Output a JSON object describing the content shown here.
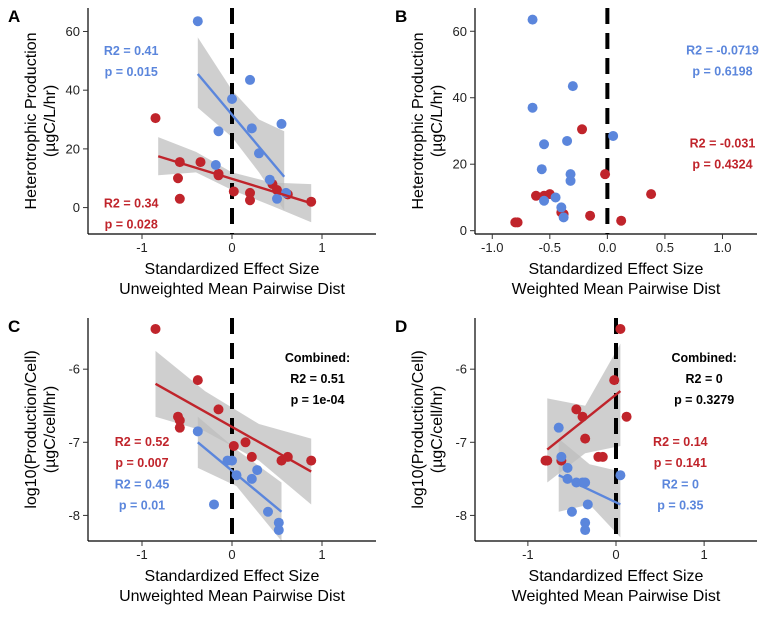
{
  "chart_data": [
    {
      "type": "scatter",
      "panel_label": "A",
      "xlabel": [
        "Standardized Effect Size",
        "Unweighted Mean Pairwise Dist"
      ],
      "ylabel": [
        "Heterotrophic Production",
        "(µgC/L/hr)"
      ],
      "xlim": [
        -1.6,
        1.6
      ],
      "ylim": [
        -9,
        68
      ],
      "xticks": [
        -1,
        0,
        1
      ],
      "yticks": [
        0,
        20,
        40,
        60
      ],
      "vline_x": 0,
      "series": [
        {
          "color": "#c0242b",
          "points": [
            [
              -0.85,
              30.5
            ],
            [
              -0.58,
              15.5
            ],
            [
              -0.6,
              10
            ],
            [
              -0.58,
              3
            ],
            [
              -0.35,
              15.5
            ],
            [
              -0.15,
              11
            ],
            [
              -0.15,
              11.5
            ],
            [
              0.02,
              5.5
            ],
            [
              0.2,
              5
            ],
            [
              0.2,
              2.5
            ],
            [
              0.45,
              8
            ],
            [
              0.5,
              6
            ],
            [
              0.62,
              4.5
            ],
            [
              0.88,
              2
            ]
          ],
          "fit": [
            [
              -0.82,
              17.5
            ],
            [
              0.88,
              1.5
            ]
          ],
          "band_lower": [
            [
              -0.82,
              11
            ],
            [
              -0.4,
              12
            ],
            [
              0,
              6
            ],
            [
              0.45,
              0.5
            ],
            [
              0.88,
              -5
            ]
          ],
          "band_upper": [
            [
              -0.82,
              24
            ],
            [
              -0.4,
              19
            ],
            [
              0,
              12
            ],
            [
              0.45,
              8.5
            ],
            [
              0.88,
              8
            ]
          ]
        },
        {
          "color": "#5b86dc",
          "points": [
            [
              -0.38,
              63.5
            ],
            [
              -0.15,
              26
            ],
            [
              -0.18,
              14.5
            ],
            [
              0,
              37
            ],
            [
              0.2,
              43.5
            ],
            [
              0.22,
              27
            ],
            [
              0.3,
              18.5
            ],
            [
              0.42,
              9.5
            ],
            [
              0.5,
              3
            ],
            [
              0.55,
              28.5
            ],
            [
              0.6,
              5
            ]
          ],
          "fit": [
            [
              -0.38,
              45.5
            ],
            [
              0.58,
              10.5
            ]
          ],
          "band_lower": [
            [
              -0.38,
              34
            ],
            [
              0,
              24
            ],
            [
              0.3,
              12
            ],
            [
              0.58,
              -1
            ]
          ],
          "band_upper": [
            [
              -0.38,
              58
            ],
            [
              0,
              40
            ],
            [
              0.3,
              30
            ],
            [
              0.58,
              26
            ]
          ]
        }
      ],
      "annotations": [
        {
          "lines": [
            "R2 = 0.41",
            "p = 0.015"
          ],
          "color": "#5b86dc",
          "x": -1.12,
          "y": 52
        },
        {
          "lines": [
            "R2 = 0.34",
            "p = 0.028"
          ],
          "color": "#c0242b",
          "x": -1.12,
          "y": 0
        }
      ]
    },
    {
      "type": "scatter",
      "panel_label": "B",
      "xlabel": [
        "Standardized Effect Size",
        "Weighted Mean Pairwise Dist"
      ],
      "ylabel": [
        "Heterotrophic Production",
        "(µgC/L/hr)"
      ],
      "xlim": [
        -1.15,
        1.3
      ],
      "ylim": [
        -1,
        67
      ],
      "xticks": [
        -1,
        -0.5,
        0,
        0.5,
        1
      ],
      "xticklabels": [
        "-1.0",
        "-0.5",
        "0.0",
        "0.5",
        "1.0"
      ],
      "yticks": [
        0,
        20,
        40,
        60
      ],
      "vline_x": 0,
      "series": [
        {
          "color": "#c0242b",
          "points": [
            [
              -0.8,
              2.5
            ],
            [
              -0.78,
              2.5
            ],
            [
              -0.62,
              10.5
            ],
            [
              -0.55,
              10.5
            ],
            [
              -0.5,
              11
            ],
            [
              -0.4,
              5.5
            ],
            [
              -0.38,
              5
            ],
            [
              -0.22,
              30.5
            ],
            [
              -0.15,
              4.5
            ],
            [
              -0.02,
              17
            ],
            [
              0.12,
              3
            ],
            [
              0.38,
              11
            ]
          ],
          "fit": [],
          "band_lower": [],
          "band_upper": []
        },
        {
          "color": "#5b86dc",
          "points": [
            [
              -0.65,
              63.5
            ],
            [
              -0.65,
              37
            ],
            [
              -0.55,
              26
            ],
            [
              -0.57,
              18.5
            ],
            [
              -0.55,
              9
            ],
            [
              -0.45,
              10
            ],
            [
              -0.4,
              7
            ],
            [
              -0.38,
              4
            ],
            [
              -0.35,
              27
            ],
            [
              -0.32,
              15
            ],
            [
              -0.32,
              17
            ],
            [
              -0.3,
              43.5
            ],
            [
              0.05,
              28.5
            ]
          ],
          "fit": [],
          "band_lower": [],
          "band_upper": []
        }
      ],
      "annotations": [
        {
          "lines": [
            "R2 = -0.0719",
            "p = 0.6198"
          ],
          "color": "#5b86dc",
          "x": 1.0,
          "y": 53
        },
        {
          "lines": [
            "R2 = -0.031",
            "p = 0.4324"
          ],
          "color": "#c0242b",
          "x": 1.0,
          "y": 25
        }
      ]
    },
    {
      "type": "scatter",
      "panel_label": "C",
      "xlabel": [
        "Standardized Effect Size",
        "Unweighted Mean Pairwise Dist"
      ],
      "ylabel": [
        "log10(Production/Cell)",
        "(µgC/cell/hr)"
      ],
      "xlim": [
        -1.6,
        1.6
      ],
      "ylim": [
        -8.35,
        -5.3
      ],
      "xticks": [
        -1,
        0,
        1
      ],
      "yticks": [
        -8,
        -7,
        -6
      ],
      "vline_x": 0,
      "series": [
        {
          "color": "#c0242b",
          "points": [
            [
              -0.85,
              -5.45
            ],
            [
              -0.6,
              -6.65
            ],
            [
              -0.58,
              -6.7
            ],
            [
              -0.58,
              -6.8
            ],
            [
              -0.38,
              -6.15
            ],
            [
              -0.15,
              -6.55
            ],
            [
              0.02,
              -7.05
            ],
            [
              0.15,
              -7.0
            ],
            [
              0.22,
              -7.2
            ],
            [
              0.55,
              -7.25
            ],
            [
              0.62,
              -7.2
            ],
            [
              0.88,
              -7.25
            ]
          ],
          "fit": [
            [
              -0.85,
              -6.2
            ],
            [
              0.88,
              -7.4
            ]
          ],
          "band_lower": [
            [
              -0.85,
              -6.65
            ],
            [
              -0.3,
              -6.85
            ],
            [
              0.3,
              -7.25
            ],
            [
              0.88,
              -7.85
            ]
          ],
          "band_upper": [
            [
              -0.85,
              -5.75
            ],
            [
              -0.3,
              -6.3
            ],
            [
              0.3,
              -6.75
            ],
            [
              0.88,
              -6.95
            ]
          ]
        },
        {
          "color": "#5b86dc",
          "points": [
            [
              -0.38,
              -6.85
            ],
            [
              -0.2,
              -7.85
            ],
            [
              -0.05,
              -7.25
            ],
            [
              0,
              -7.25
            ],
            [
              0.05,
              -7.45
            ],
            [
              0.22,
              -7.5
            ],
            [
              0.28,
              -7.38
            ],
            [
              0.4,
              -7.95
            ],
            [
              0.52,
              -8.1
            ],
            [
              0.52,
              -8.2
            ]
          ],
          "fit": [
            [
              -0.38,
              -7.0
            ],
            [
              0.55,
              -7.95
            ]
          ],
          "band_lower": [
            [
              -0.38,
              -7.35
            ],
            [
              0.05,
              -7.6
            ],
            [
              0.55,
              -8.35
            ]
          ],
          "band_upper": [
            [
              -0.38,
              -6.65
            ],
            [
              0.05,
              -7.1
            ],
            [
              0.55,
              -7.55
            ]
          ]
        }
      ],
      "annotations": [
        {
          "lines": [
            "Combined:",
            "R2 = 0.51",
            "p = 1e-04"
          ],
          "color": "#000000",
          "x": 0.95,
          "y": -5.9
        },
        {
          "lines": [
            "R2 = 0.52",
            "p = 0.007"
          ],
          "color": "#c0242b",
          "x": -1.0,
          "y": -7.05
        },
        {
          "lines": [
            "R2 = 0.45",
            "p = 0.01"
          ],
          "color": "#5b86dc",
          "x": -1.0,
          "y": -7.63
        }
      ]
    },
    {
      "type": "scatter",
      "panel_label": "D",
      "xlabel": [
        "Standardized Effect Size",
        "Weighted Mean Pairwise Dist"
      ],
      "ylabel": [
        "log10(Production/Cell)",
        "(µgC/cell/hr)"
      ],
      "xlim": [
        -1.6,
        1.6
      ],
      "ylim": [
        -8.35,
        -5.3
      ],
      "xticks": [
        -1,
        0,
        1
      ],
      "yticks": [
        -8,
        -7,
        -6
      ],
      "vline_x": 0,
      "series": [
        {
          "color": "#c0242b",
          "points": [
            [
              -0.8,
              -7.25
            ],
            [
              -0.78,
              -7.25
            ],
            [
              -0.62,
              -7.25
            ],
            [
              -0.45,
              -6.55
            ],
            [
              -0.38,
              -6.65
            ],
            [
              -0.35,
              -6.95
            ],
            [
              -0.2,
              -7.2
            ],
            [
              -0.15,
              -7.2
            ],
            [
              -0.02,
              -6.15
            ],
            [
              0.05,
              -5.45
            ],
            [
              0.12,
              -6.65
            ]
          ],
          "fit": [
            [
              -0.78,
              -7.1
            ],
            [
              0.05,
              -6.3
            ]
          ],
          "band_lower": [
            [
              -0.78,
              -7.55
            ],
            [
              -0.35,
              -7.15
            ],
            [
              0.05,
              -7.05
            ]
          ],
          "band_upper": [
            [
              -0.78,
              -6.4
            ],
            [
              -0.35,
              -6.5
            ],
            [
              0.05,
              -5.65
            ]
          ]
        },
        {
          "color": "#5b86dc",
          "points": [
            [
              -0.65,
              -6.8
            ],
            [
              -0.62,
              -7.2
            ],
            [
              -0.55,
              -7.35
            ],
            [
              -0.55,
              -7.5
            ],
            [
              -0.5,
              -7.95
            ],
            [
              -0.45,
              -7.55
            ],
            [
              -0.38,
              -7.55
            ],
            [
              -0.35,
              -7.55
            ],
            [
              -0.35,
              -8.1
            ],
            [
              -0.35,
              -8.2
            ],
            [
              -0.32,
              -7.85
            ],
            [
              0.05,
              -7.45
            ]
          ],
          "fit": [
            [
              -0.65,
              -7.45
            ],
            [
              0.05,
              -7.85
            ]
          ],
          "band_lower": [
            [
              -0.65,
              -7.95
            ],
            [
              -0.3,
              -7.85
            ],
            [
              0.05,
              -8.3
            ]
          ],
          "band_upper": [
            [
              -0.65,
              -6.95
            ],
            [
              -0.3,
              -7.3
            ],
            [
              0.05,
              -7.4
            ]
          ]
        }
      ],
      "annotations": [
        {
          "lines": [
            "Combined:",
            "R2 = 0",
            "p = 0.3279"
          ],
          "color": "#000000",
          "x": 1.0,
          "y": -5.9
        },
        {
          "lines": [
            "R2 = 0.14",
            "p = 0.141"
          ],
          "color": "#c0242b",
          "x": 0.73,
          "y": -7.05
        },
        {
          "lines": [
            "R2 = 0",
            "p = 0.35"
          ],
          "color": "#5b86dc",
          "x": 0.73,
          "y": -7.63
        }
      ]
    }
  ]
}
